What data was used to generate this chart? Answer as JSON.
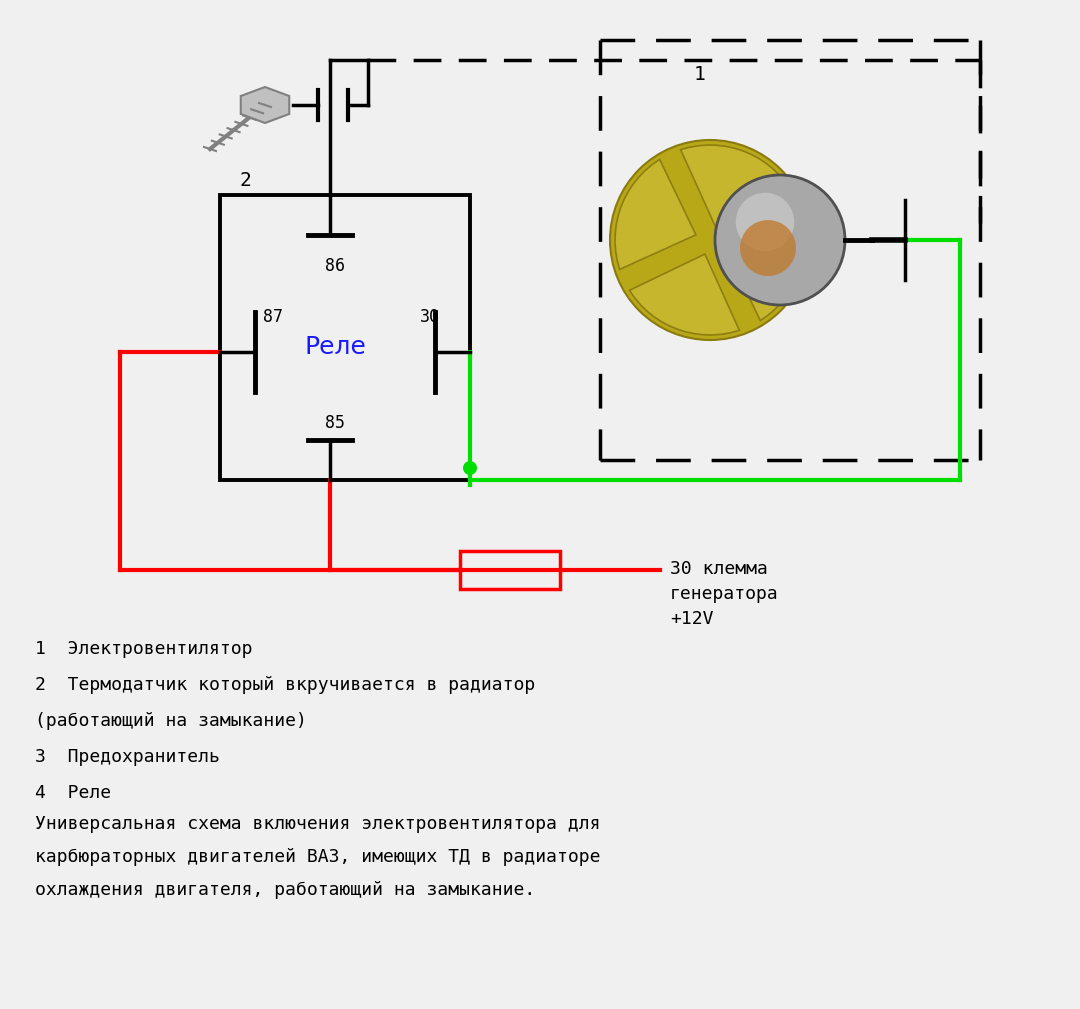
{
  "bg_color": "#f0f0f0",
  "red": "#ff0000",
  "green": "#00dd00",
  "black": "#000000",
  "blue": "#1a1aff",
  "relay_label": "Реле",
  "label_30": "30 клемма\nгенератора\n+12V",
  "legend": [
    "1  Электровентилятор",
    "2  Термодатчик который вкручивается в радиатор",
    "(работающий на замыкание)",
    "3  Предохранитель",
    "4  Реле"
  ],
  "desc": [
    "Универсальная схема включения электровентилятора для",
    "карбюраторных двигателей ВАЗ, имеющих ТД в радиаторе",
    "охлаждения двигателя, работающий на замыкание."
  ],
  "sensor_fill": "#c0c0c0",
  "sensor_edge": "#808080",
  "blade_fill": "#c8b830",
  "blade_edge": "#8a7a10",
  "motor_fill": "#a8a8a8",
  "motor_edge": "#505050"
}
